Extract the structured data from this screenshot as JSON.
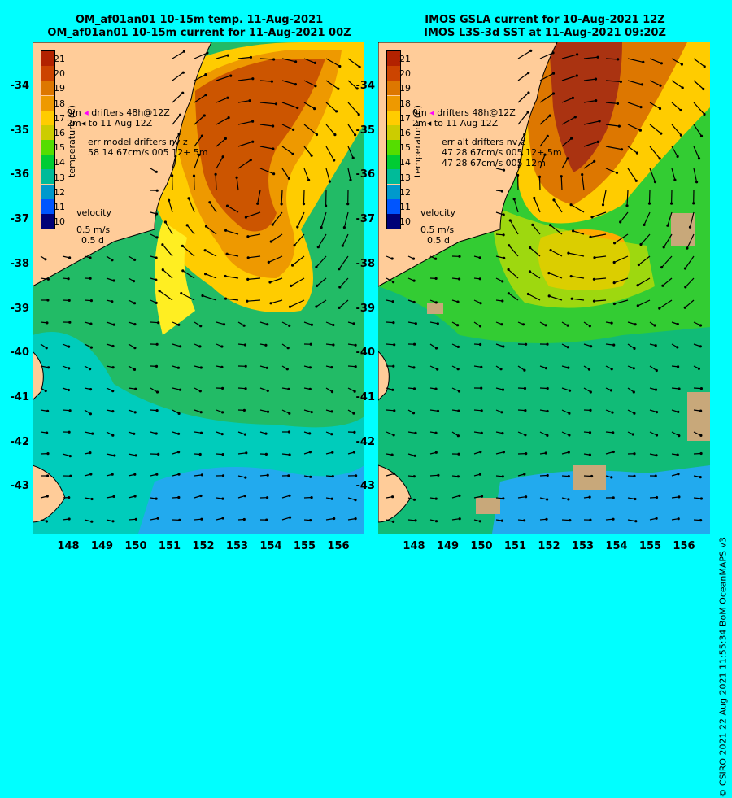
{
  "left": {
    "title1": "OM_af01an01 10-15m temp. 11-Aug-2021",
    "title2": "OM_af01an01 10-15m current for 11-Aug-2021 00Z",
    "drifters": "drifters 48h@12Z",
    "drifters_to": "to 11 Aug 12Z",
    "d_prefix1": "0m",
    "d_prefix2": "2m",
    "err_label": "err model drifters nv z",
    "err_row1": "58 14 67cm/s 005 12+ 5m"
  },
  "right": {
    "title1": "IMOS GSLA current for 10-Aug-2021 12Z",
    "title2": "IMOS L3S-3d SST at 11-Aug-2021 09:20Z",
    "drifters": "drifters 48h@12Z",
    "drifters_to": "to 11 Aug 12Z",
    "d_prefix1": "0m",
    "d_prefix2": "2m",
    "err_label": "err alt drifters nv z",
    "err_row1": "47 28 67cm/s 005 12+ 5m",
    "err_row2": "47 28 67cm/s 005 12m"
  },
  "colorbar": {
    "title": "temperature (C)",
    "labels": [
      "21",
      "20",
      "19",
      "18",
      "17",
      "16",
      "15",
      "14",
      "13",
      "12",
      "11",
      "10"
    ],
    "colors": [
      "#b22200",
      "#cc4400",
      "#dd7700",
      "#ee9900",
      "#ffcc00",
      "#cccc00",
      "#55dd00",
      "#00cc33",
      "#00bb99",
      "#0099cc",
      "#0055ff",
      "#000077"
    ]
  },
  "velocity": {
    "label": "velocity",
    "speed": "0.5 m/s",
    "time": "0.5 d"
  },
  "lat_labels": [
    "-34",
    "-35",
    "-36",
    "-37",
    "-38",
    "-39",
    "-40",
    "-41",
    "-42",
    "-43"
  ],
  "lon_labels": [
    "148",
    "149",
    "150",
    "151",
    "152",
    "153",
    "154",
    "155",
    "156"
  ],
  "copyright": "© CSIRO 2021   22 Aug 2021 11:55:34 BoM OceanMAPS v3"
}
